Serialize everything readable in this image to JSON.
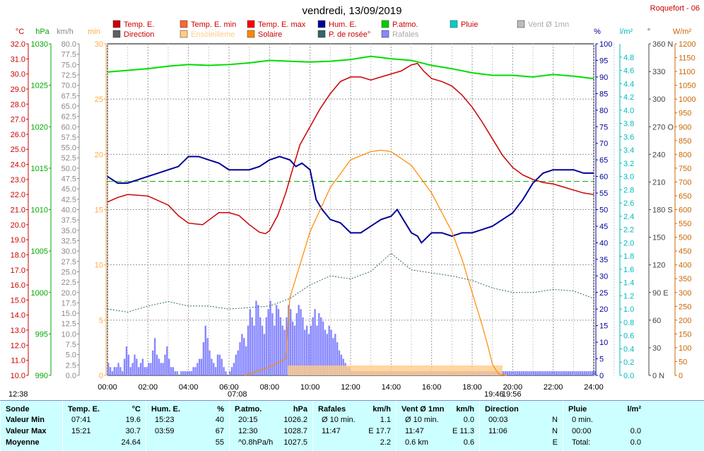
{
  "station": "Roquefort - 06",
  "title": "vendredi, 13/09/2019",
  "legend": [
    {
      "label": "Temp. E.",
      "color": "#cc0000"
    },
    {
      "label": "Direction",
      "color": "#606060"
    },
    {
      "label": "Temp. E. min",
      "color": "#ff6633"
    },
    {
      "label": "Ensoleilleme",
      "color": "#ffcc88"
    },
    {
      "label": "Temp. E. max",
      "color": "#ff0000"
    },
    {
      "label": "Solaire",
      "color": "#ff8800"
    },
    {
      "label": "Hum. E.",
      "color": "#000099"
    },
    {
      "label": "P. de rosée°",
      "color": "#336666"
    },
    {
      "label": "P.atmo.",
      "color": "#00cc00"
    },
    {
      "label": "Rafales",
      "color": "#8888ff"
    },
    {
      "label": "Pluie",
      "color": "#00cccc"
    },
    {
      "label": "Vent Ø 1mn",
      "color": "#bbbbbb"
    }
  ],
  "axis_units": {
    "temp": "°C",
    "hpa": "hPa",
    "kmh": "km/h",
    "min": "min",
    "pct": "%",
    "lm2": "l/m²",
    "deg": "°",
    "wm2": "W/m²"
  },
  "sun_marks": {
    "first": "12:38",
    "sunrise": "07:08",
    "sunset": "19:46",
    "last": "19:56"
  },
  "chart_data": {
    "type": "line",
    "x_label_ticks": [
      "00:00",
      "02:00",
      "04:00",
      "06:00",
      "08:00",
      "10:00",
      "12:00",
      "14:00",
      "16:00",
      "18:00",
      "20:00",
      "22:00",
      "24:00"
    ],
    "axes": {
      "temp": {
        "min": 10,
        "max": 32,
        "ticks": [
          "10.0",
          "11.0",
          "12.0",
          "13.0",
          "14.0",
          "15.0",
          "16.0",
          "17.0",
          "18.0",
          "19.0",
          "20.0",
          "21.0",
          "22.0",
          "23.0",
          "24.0",
          "25.0",
          "26.0",
          "27.0",
          "28.0",
          "29.0",
          "30.0",
          "31.0",
          "32.0"
        ]
      },
      "hpa": {
        "min": 990,
        "max": 1030,
        "ticks": [
          "990",
          "995",
          "1000",
          "1005",
          "1010",
          "1015",
          "1020",
          "1025",
          "1030"
        ]
      },
      "kmh": {
        "min": 0,
        "max": 80,
        "ticks": [
          "0.0",
          "2.5",
          "5.0",
          "7.5",
          "10.0",
          "12.5",
          "15.0",
          "17.5",
          "20.0",
          "22.5",
          "25.0",
          "27.5",
          "30.0",
          "32.5",
          "35.0",
          "37.5",
          "40.0",
          "42.5",
          "45.0",
          "47.5",
          "50.0",
          "52.5",
          "55.0",
          "57.5",
          "60.0",
          "62.5",
          "65.0",
          "67.5",
          "70.0",
          "72.5",
          "75.0",
          "77.5",
          "80.0"
        ]
      },
      "min": {
        "min": 0,
        "max": 30,
        "ticks": [
          "0",
          "5",
          "10",
          "15",
          "20",
          "25",
          "30"
        ]
      },
      "pct": {
        "min": 0,
        "max": 100,
        "ticks": [
          "0",
          "5",
          "10",
          "15",
          "20",
          "25",
          "30",
          "35",
          "40",
          "45",
          "50",
          "55",
          "60",
          "65",
          "70",
          "75",
          "80",
          "85",
          "90",
          "95",
          "100"
        ]
      },
      "lm2": {
        "min": 0,
        "max": 5,
        "ticks": [
          "0.0",
          "0.2",
          "0.4",
          "0.6",
          "0.8",
          "1.0",
          "1.2",
          "1.4",
          "1.6",
          "1.8",
          "2.0",
          "2.2",
          "2.4",
          "2.6",
          "2.8",
          "3.0",
          "3.2",
          "3.4",
          "3.6",
          "3.8",
          "4.0",
          "4.2",
          "4.4",
          "4.6",
          "4.8"
        ]
      },
      "deg": {
        "min": 0,
        "max": 360,
        "ticks": [
          "0 N",
          "30",
          "60",
          "90 E",
          "120",
          "150",
          "180 S",
          "210",
          "240",
          "270 O",
          "300",
          "330",
          "360 N"
        ]
      },
      "wm2": {
        "min": 0,
        "max": 1200,
        "ticks": [
          "0",
          "50",
          "100",
          "150",
          "200",
          "250",
          "300",
          "350",
          "400",
          "450",
          "500",
          "550",
          "600",
          "650",
          "700",
          "750",
          "800",
          "850",
          "900",
          "950",
          "1000",
          "1050",
          "1100",
          "1150",
          "1200"
        ]
      }
    },
    "series": [
      {
        "name": "Temp. E.",
        "axis": "temp",
        "x": [
          0,
          0.5,
          1,
          2,
          3,
          3.5,
          4,
          4.7,
          5,
          5.5,
          6,
          6.5,
          7,
          7.5,
          7.8,
          8,
          8.4,
          8.8,
          9.1,
          9.5,
          10,
          10.5,
          11,
          11.5,
          12,
          12.5,
          13,
          13.5,
          14,
          14.5,
          15,
          15.3,
          15.6,
          16,
          16.5,
          17,
          17.5,
          18,
          18.5,
          19,
          19.5,
          20,
          20.5,
          21,
          21.5,
          22,
          22.5,
          23,
          23.5,
          24
        ],
        "y": [
          21.5,
          21.8,
          22.0,
          21.9,
          21.3,
          20.6,
          20.1,
          20.0,
          20.3,
          20.8,
          20.8,
          20.6,
          20.0,
          19.5,
          19.4,
          19.6,
          20.6,
          22.1,
          23.5,
          25.3,
          26.5,
          27.7,
          28.7,
          29.5,
          29.8,
          29.8,
          29.6,
          29.8,
          30.0,
          30.2,
          30.6,
          30.7,
          30.2,
          29.7,
          29.5,
          29.2,
          28.6,
          27.8,
          26.8,
          25.7,
          24.6,
          23.8,
          23.3,
          23.0,
          22.8,
          22.7,
          22.5,
          22.3,
          22.1,
          22.0
        ]
      },
      {
        "name": "Hum. E.",
        "axis": "pct",
        "x": [
          0,
          0.5,
          1,
          1.5,
          2,
          2.5,
          3,
          3.5,
          4,
          4.5,
          5,
          5.5,
          6,
          6.5,
          7,
          7.5,
          8,
          8.5,
          9,
          9.3,
          9.6,
          10,
          10.3,
          10.6,
          11,
          11.5,
          12,
          12.5,
          13,
          13.5,
          14,
          14.3,
          14.6,
          15,
          15.3,
          15.5,
          16,
          16.5,
          17,
          17.5,
          18,
          18.5,
          19,
          19.5,
          20,
          20.5,
          21,
          21.5,
          22,
          22.5,
          23,
          23.5,
          24
        ],
        "y": [
          60,
          58,
          58,
          59,
          60,
          61,
          62,
          63,
          66,
          66,
          65,
          64,
          62,
          62,
          62,
          63,
          65,
          66,
          65,
          63,
          64,
          62,
          53,
          50,
          47,
          46,
          43,
          43,
          45,
          47,
          48,
          50,
          47,
          43,
          42,
          40,
          43,
          43,
          42,
          43,
          43,
          44,
          45,
          47,
          49,
          53,
          58,
          61,
          62,
          62,
          62,
          61,
          61
        ]
      },
      {
        "name": "P.atmo.",
        "axis": "hpa",
        "x": [
          0,
          1,
          2,
          3,
          4,
          5,
          6,
          7,
          8,
          9,
          10,
          11,
          12,
          13,
          14,
          15,
          16,
          17,
          18,
          19,
          20,
          21,
          22,
          23,
          24
        ],
        "y": [
          1026.6,
          1026.8,
          1027.0,
          1027.3,
          1027.5,
          1027.4,
          1027.5,
          1027.7,
          1028.0,
          1027.9,
          1027.8,
          1027.9,
          1028.1,
          1028.5,
          1028.2,
          1028.0,
          1027.4,
          1027.0,
          1026.5,
          1026.2,
          1026.2,
          1026.0,
          1026.3,
          1026.1,
          1025.8
        ]
      },
      {
        "name": "Solaire",
        "axis": "wm2",
        "x": [
          6.8,
          7,
          8,
          8.8,
          9,
          9.5,
          10,
          11,
          12,
          13,
          13.5,
          14,
          15,
          16,
          17,
          17.5,
          18,
          18.5,
          18.8,
          19,
          19.3,
          19.7
        ],
        "y": [
          0,
          5,
          30,
          60,
          280,
          400,
          520,
          680,
          780,
          810,
          815,
          810,
          760,
          660,
          520,
          420,
          300,
          180,
          100,
          40,
          5,
          0
        ]
      },
      {
        "name": "P. de rosée°",
        "axis": "temp",
        "x": [
          0,
          1,
          2,
          3,
          4,
          5,
          6,
          7,
          8,
          9,
          10,
          11,
          12,
          13,
          14,
          15,
          16,
          17,
          18,
          19,
          20,
          21,
          22,
          23,
          24
        ],
        "y": [
          14.4,
          14.2,
          14.6,
          14.9,
          14.6,
          14.6,
          14.4,
          14.5,
          14.6,
          15.1,
          16.0,
          16.6,
          16.4,
          16.9,
          18.1,
          17.0,
          16.8,
          16.6,
          16.3,
          15.8,
          15.5,
          15.5,
          15.7,
          15.6,
          15.1
        ]
      }
    ],
    "bars": {
      "name": "Rafales",
      "axis": "kmh",
      "interval_hours": 0.1,
      "values": [
        3,
        2,
        1,
        2,
        2,
        3,
        2,
        1,
        4,
        7,
        5,
        2,
        3,
        5,
        4,
        2,
        3,
        4,
        2,
        2,
        3,
        3,
        6,
        9,
        5,
        4,
        3,
        3,
        5,
        7,
        4,
        2,
        2,
        1,
        1,
        0,
        1,
        1,
        1,
        1,
        1,
        1,
        2,
        2,
        3,
        4,
        4,
        8,
        12,
        9,
        6,
        4,
        3,
        2,
        5,
        5,
        4,
        2,
        1,
        0,
        1,
        2,
        3,
        5,
        6,
        8,
        10,
        9,
        7,
        12,
        16,
        14,
        12,
        18,
        17,
        14,
        12,
        10,
        14,
        16,
        18,
        15,
        12,
        17,
        16,
        14,
        12,
        11,
        14,
        17,
        16,
        13,
        12,
        15,
        17,
        16,
        14,
        11,
        12,
        10,
        12,
        14,
        16,
        12,
        15,
        14,
        13,
        11,
        10,
        12,
        11,
        9,
        10,
        8,
        6,
        5,
        4,
        3,
        2,
        2,
        1,
        1,
        1,
        1,
        1,
        1,
        1,
        1,
        1,
        1,
        1,
        1,
        1,
        1,
        1,
        1,
        1,
        1,
        1,
        1,
        1,
        1,
        1,
        1,
        1,
        1,
        1,
        1,
        1,
        1,
        1,
        1,
        1,
        1,
        1,
        1,
        1,
        1,
        1,
        1,
        1,
        1,
        1,
        1,
        1,
        1,
        1,
        1,
        1,
        1,
        1,
        1,
        1,
        1,
        1,
        1,
        1,
        1,
        1,
        1,
        1,
        1,
        1,
        1,
        1,
        1,
        1,
        1,
        1,
        1,
        1,
        1,
        1,
        1,
        1,
        1,
        1,
        1,
        1,
        1,
        1,
        1,
        1,
        1,
        1,
        1,
        1,
        1,
        1,
        1,
        1,
        1,
        1,
        1,
        1,
        1,
        1,
        1,
        1,
        1,
        1,
        1,
        1,
        1,
        1,
        1,
        1,
        1,
        1,
        1,
        1,
        1,
        1,
        1,
        1,
        1,
        1,
        1,
        1,
        1,
        1
      ]
    },
    "reference_line": {
      "axis": "pct",
      "value": 58.5
    }
  },
  "table": {
    "sonde": {
      "title": "Sonde",
      "rows": [
        "Valeur Min",
        "Valeur Max",
        "Moyenne"
      ]
    },
    "temp": {
      "title": "Temp. E.",
      "unit": "°C",
      "rows": [
        [
          "07:41",
          "19.6"
        ],
        [
          "15:21",
          "30.7"
        ],
        [
          "",
          "24.64"
        ]
      ]
    },
    "hum": {
      "title": "Hum. E.",
      "unit": "%",
      "rows": [
        [
          "15:23",
          "40"
        ],
        [
          "03:59",
          "67"
        ],
        [
          "",
          "55"
        ]
      ]
    },
    "patmo": {
      "title": "P.atmo.",
      "unit": "hPa",
      "rows": [
        [
          "20:15",
          "1026.2"
        ],
        [
          "12:30",
          "1028.7"
        ],
        [
          "^0.8hPa/h",
          "1027.5"
        ]
      ]
    },
    "rafales": {
      "title": "Rafales",
      "unit": "km/h",
      "rows": [
        [
          "Ø 10 min.",
          "1.1"
        ],
        [
          "11:47",
          "E 17.7"
        ],
        [
          "",
          "2.2"
        ]
      ]
    },
    "vent": {
      "title": "Vent Ø 1mn",
      "unit": "km/h",
      "rows": [
        [
          "Ø 10 min.",
          "0.0"
        ],
        [
          "11:47",
          "E 11.3"
        ],
        [
          "0.6 km",
          "0.6"
        ]
      ]
    },
    "direction": {
      "title": "Direction",
      "unit": "",
      "rows": [
        [
          "00:03",
          "N"
        ],
        [
          "11:06",
          "N"
        ],
        [
          "",
          "E"
        ]
      ]
    },
    "pluie": {
      "title": "Pluie",
      "unit": "l/m²",
      "rows": [
        [
          "0 min.",
          ""
        ],
        [
          "00:00",
          "0.0"
        ],
        [
          "Total:",
          "0.0"
        ]
      ]
    }
  }
}
